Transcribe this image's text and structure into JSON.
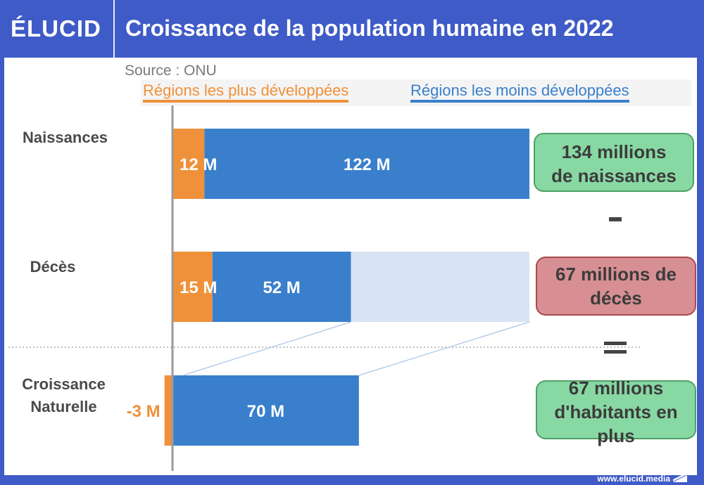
{
  "header": {
    "logo": "ÉLUCID",
    "title": "Croissance de la population humaine en 2022"
  },
  "source": "Source : ONU",
  "colors": {
    "brand": "#3f5bc7",
    "more_developed": "#ef913a",
    "less_developed": "#3a7fcc",
    "ghost": "#d8e4f3",
    "positive_box": "#88d8a3",
    "negative_box": "#d78f93"
  },
  "legend": {
    "more_developed": "Régions les plus développées",
    "less_developed": "Régions les moins développées"
  },
  "chart_data": {
    "type": "bar",
    "orientation": "horizontal",
    "stacked": true,
    "title": "Croissance de la population humaine en 2022",
    "unit": "millions",
    "categories": [
      "Naissances",
      "Décès",
      "Croissance Naturelle"
    ],
    "category_labels": [
      [
        "Naissances"
      ],
      [
        "Décès"
      ],
      [
        "Croissance",
        "Naturelle"
      ]
    ],
    "series": [
      {
        "name": "Régions les plus développées",
        "values": [
          12,
          15,
          -3
        ],
        "labels": [
          "12 M",
          "15 M",
          "-3 M"
        ]
      },
      {
        "name": "Régions les moins développées",
        "values": [
          122,
          52,
          70
        ],
        "labels": [
          "122 M",
          "52 M",
          "70 M"
        ]
      }
    ],
    "ghost_total_deaths_row": 134,
    "xlim": [
      0,
      134
    ],
    "grid": false,
    "legend_position": "top"
  },
  "summary": {
    "births": [
      "134 millions",
      "de naissances"
    ],
    "minus": "-",
    "deaths": [
      "67 millions de",
      "décès"
    ],
    "equals": "=",
    "growth": [
      "67 millions",
      "d'habitants en",
      "plus"
    ]
  },
  "footer": {
    "url": "www.elucid.media"
  }
}
